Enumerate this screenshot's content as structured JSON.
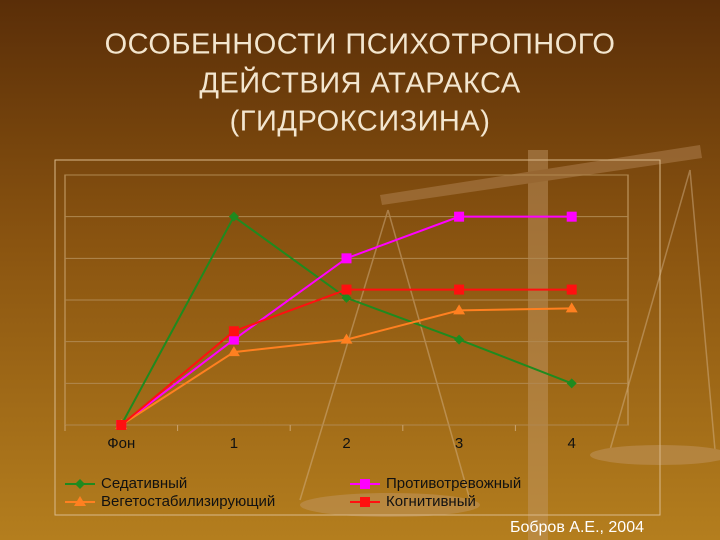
{
  "slide": {
    "title": [
      "ОСОБЕННОСТИ ПСИХОТРОПНОГО",
      "ДЕЙСТВИЯ АТАРАКСА",
      "(ГИДРОКСИЗИНА)"
    ],
    "credit": "Бобров А.Е., 2004"
  },
  "chart_data": {
    "type": "line",
    "categories": [
      "Фон",
      "1",
      "2",
      "3",
      "4"
    ],
    "series": [
      {
        "name": "Седативный",
        "color": "#1f8a1f",
        "marker": "diamond",
        "values": [
          0,
          5,
          3.05,
          2.05,
          1
        ]
      },
      {
        "name": "Противотревожный",
        "color": "#ff00ff",
        "marker": "square",
        "values": [
          0,
          2.05,
          4,
          5,
          5
        ]
      },
      {
        "name": "Вегетостабилизирующий",
        "color": "#ff8020",
        "marker": "triangle",
        "values": [
          0,
          1.75,
          2.05,
          2.75,
          2.8
        ]
      },
      {
        "name": "Когнитивный",
        "color": "#ff1010",
        "marker": "square",
        "values": [
          0,
          2.25,
          3.25,
          3.25,
          3.25
        ]
      }
    ],
    "ylim": [
      0,
      6
    ],
    "yticks": [
      0,
      1,
      2,
      3,
      4,
      5,
      6
    ],
    "grid": true
  }
}
